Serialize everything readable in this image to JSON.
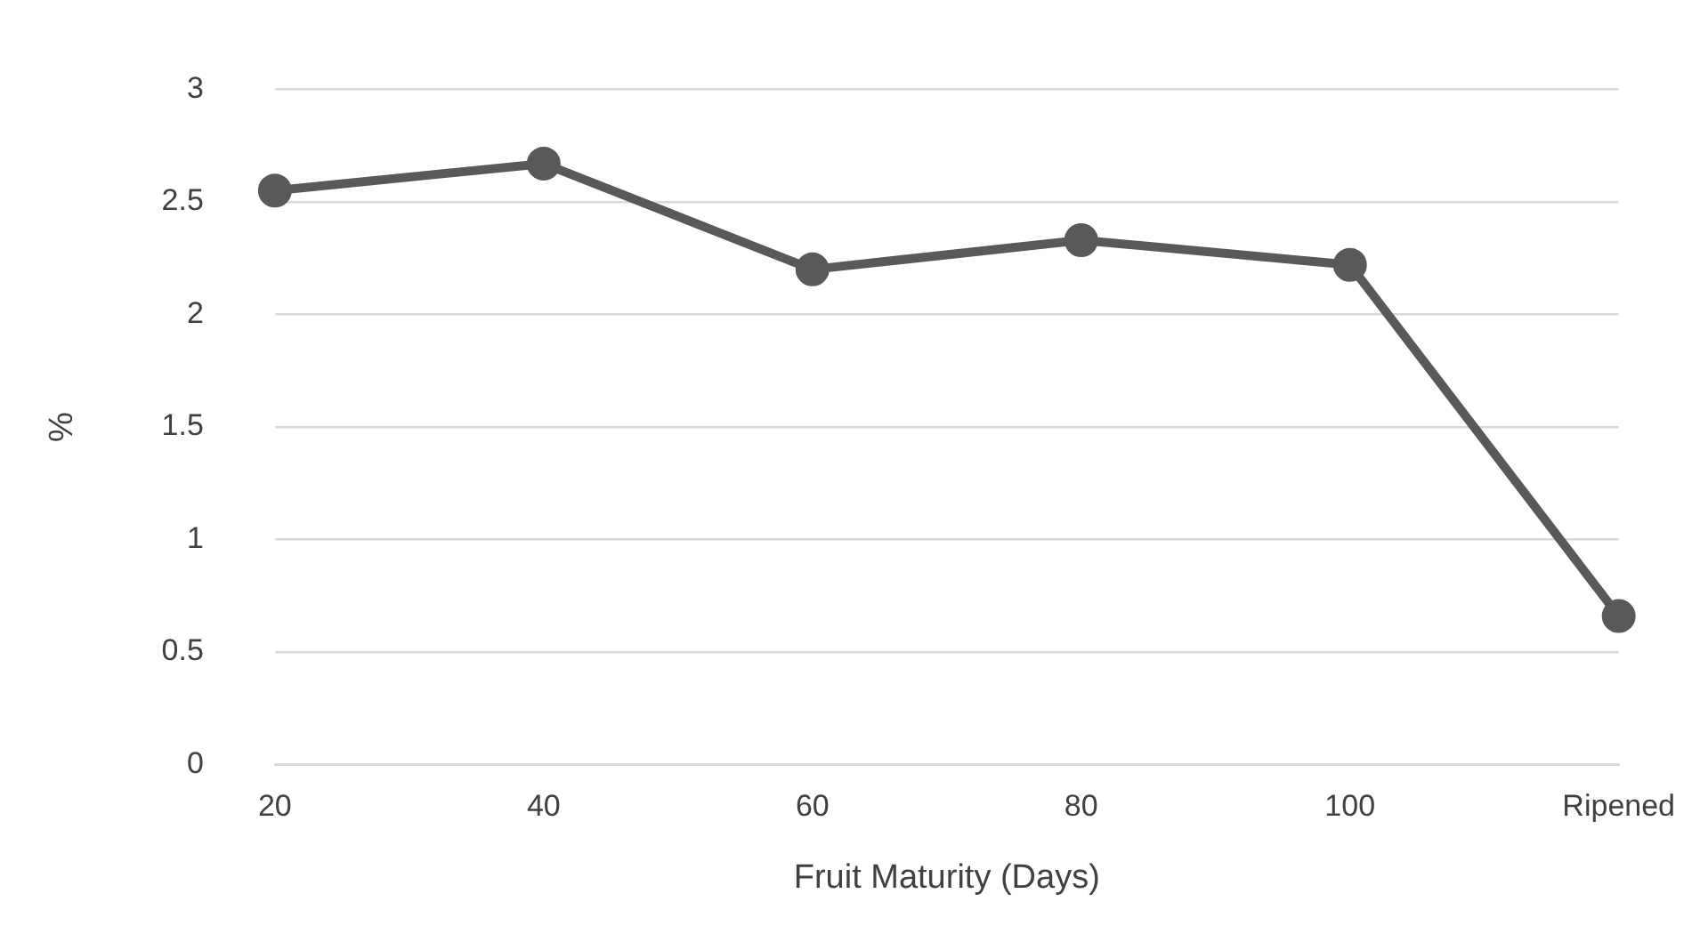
{
  "chart_data": {
    "type": "line",
    "xlabel": "Fruit Maturity (Days)",
    "ylabel": "%",
    "categories": [
      "20",
      "40",
      "60",
      "80",
      "100",
      "Ripened"
    ],
    "series": [
      {
        "color": "#595959",
        "values": [
          2.55,
          2.67,
          2.2,
          2.33,
          2.22,
          0.66
        ]
      }
    ],
    "ylim": [
      0,
      3
    ],
    "yticks": [
      0,
      0.5,
      1,
      1.5,
      2,
      2.5,
      3
    ],
    "grid": "y",
    "legend": false,
    "marker": "circle",
    "line_style": "solid"
  }
}
